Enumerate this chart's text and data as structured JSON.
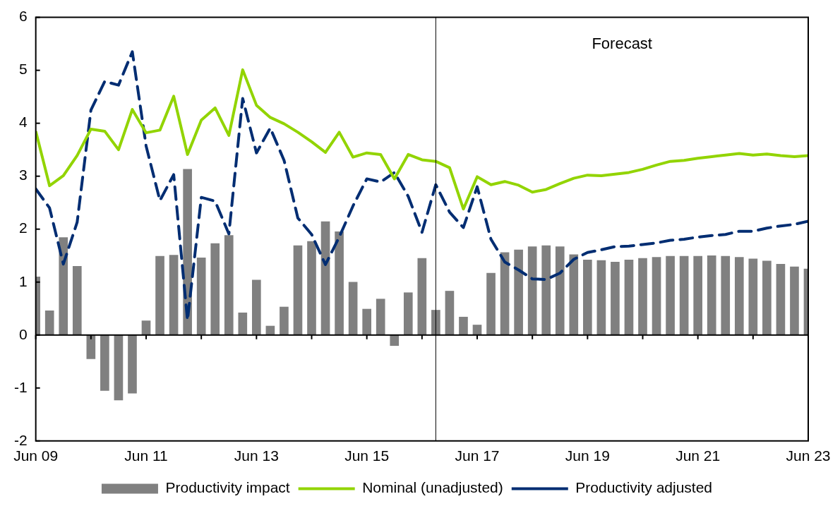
{
  "chart_data": {
    "type": "bar",
    "x": [
      "2009-06",
      "2009-09",
      "2009-12",
      "2010-03",
      "2010-06",
      "2010-09",
      "2010-12",
      "2011-03",
      "2011-06",
      "2011-09",
      "2011-12",
      "2012-03",
      "2012-06",
      "2012-09",
      "2012-12",
      "2013-03",
      "2013-06",
      "2013-09",
      "2013-12",
      "2014-03",
      "2014-06",
      "2014-09",
      "2014-12",
      "2015-03",
      "2015-06",
      "2015-09",
      "2015-12",
      "2016-03",
      "2016-06",
      "2016-09",
      "2016-12",
      "2017-03",
      "2017-06",
      "2017-09",
      "2017-12",
      "2018-03",
      "2018-06",
      "2018-09",
      "2018-12",
      "2019-03",
      "2019-06",
      "2019-09",
      "2019-12",
      "2020-03",
      "2020-06",
      "2020-09",
      "2020-12",
      "2021-03",
      "2021-06",
      "2021-09",
      "2021-12",
      "2022-03",
      "2022-06",
      "2022-09",
      "2022-12",
      "2023-03",
      "2023-06"
    ],
    "series": [
      {
        "name": "Productivity impact",
        "color": "#808080",
        "values": [
          1.1,
          0.46,
          1.84,
          1.3,
          -0.45,
          -1.05,
          -1.23,
          -1.1,
          0.27,
          1.49,
          1.51,
          3.13,
          1.46,
          1.73,
          1.88,
          0.42,
          1.04,
          0.17,
          0.53,
          1.69,
          1.77,
          2.14,
          1.95,
          1.0,
          0.49,
          0.68,
          -0.2,
          0.8,
          1.45,
          0.47,
          0.83,
          0.34,
          0.19,
          1.17,
          1.56,
          1.61,
          1.67,
          1.69,
          1.67,
          1.52,
          1.42,
          1.41,
          1.38,
          1.42,
          1.45,
          1.47,
          1.49,
          1.49,
          1.49,
          1.5,
          1.49,
          1.47,
          1.44,
          1.4,
          1.34,
          1.29,
          1.25
        ]
      },
      {
        "name": "Nominal (unadjusted)",
        "type": "line",
        "line_style": "solid",
        "color": "#92d400",
        "values": [
          3.85,
          2.82,
          3.01,
          3.39,
          3.89,
          3.85,
          3.5,
          4.26,
          3.82,
          3.87,
          4.51,
          3.41,
          4.06,
          4.29,
          3.77,
          5.01,
          4.34,
          4.11,
          3.99,
          3.83,
          3.65,
          3.45,
          3.83,
          3.36,
          3.44,
          3.41,
          2.95,
          3.41,
          3.31,
          3.28,
          3.16,
          2.38,
          2.99,
          2.84,
          2.9,
          2.83,
          2.7,
          2.75,
          2.86,
          2.96,
          3.02,
          3.01,
          3.04,
          3.07,
          3.13,
          3.21,
          3.28,
          3.3,
          3.34,
          3.37,
          3.4,
          3.43,
          3.4,
          3.42,
          3.39,
          3.37,
          3.39
        ]
      },
      {
        "name": "Productivity adjusted",
        "type": "line",
        "line_style": "dashed",
        "color": "#002d72",
        "values": [
          2.76,
          2.4,
          1.34,
          2.13,
          4.25,
          4.79,
          4.72,
          5.35,
          3.57,
          2.54,
          3.03,
          0.28,
          2.6,
          2.53,
          1.91,
          4.47,
          3.44,
          3.91,
          3.3,
          2.21,
          1.9,
          1.33,
          1.85,
          2.44,
          2.95,
          2.89,
          3.07,
          2.62,
          1.94,
          2.84,
          2.32,
          2.03,
          2.8,
          1.81,
          1.38,
          1.23,
          1.06,
          1.05,
          1.17,
          1.43,
          1.56,
          1.61,
          1.67,
          1.68,
          1.71,
          1.74,
          1.79,
          1.81,
          1.85,
          1.88,
          1.9,
          1.96,
          1.96,
          2.02,
          2.06,
          2.09,
          2.15
        ]
      }
    ],
    "xlim": [
      "2009-06",
      "2023-06"
    ],
    "xticks": [
      {
        "value": "2009-06",
        "label": "Jun 09"
      },
      {
        "value": "2010-06",
        "label": null
      },
      {
        "value": "2011-06",
        "label": "Jun 11"
      },
      {
        "value": "2012-06",
        "label": null
      },
      {
        "value": "2013-06",
        "label": "Jun 13"
      },
      {
        "value": "2014-06",
        "label": null
      },
      {
        "value": "2015-06",
        "label": "Jun 15"
      },
      {
        "value": "2016-06",
        "label": null
      },
      {
        "value": "2017-06",
        "label": "Jun 17"
      },
      {
        "value": "2018-06",
        "label": null
      },
      {
        "value": "2019-06",
        "label": "Jun 19"
      },
      {
        "value": "2020-06",
        "label": null
      },
      {
        "value": "2021-06",
        "label": "Jun 21"
      },
      {
        "value": "2022-06",
        "label": null
      },
      {
        "value": "2023-06",
        "label": "Jun 23"
      }
    ],
    "ylim": [
      -2,
      6
    ],
    "yticks": [
      -2,
      -1,
      0,
      1,
      2,
      3,
      4,
      5,
      6
    ],
    "ref_lines": [
      {
        "axis": "x",
        "value": "2016-09",
        "color": "#000000"
      }
    ],
    "annotations": [
      "Forecast"
    ],
    "legend": "bottom"
  }
}
